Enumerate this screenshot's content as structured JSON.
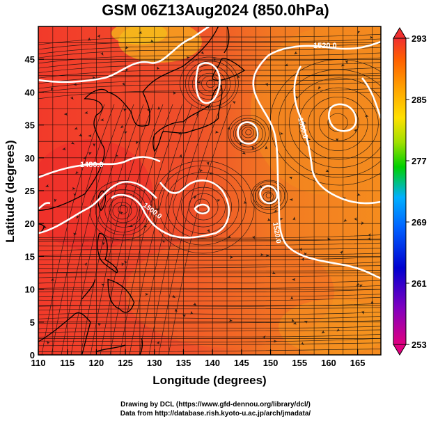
{
  "title": "GSM 06Z13Aug2024 (850.0hPa)",
  "xaxis": {
    "label": "Longitude (degrees)",
    "ticks": [
      "110",
      "115",
      "120",
      "125",
      "130",
      "135",
      "140",
      "145",
      "150",
      "155",
      "160",
      "165"
    ],
    "range": [
      110,
      169
    ]
  },
  "yaxis": {
    "label": "Latitude  (degrees)",
    "ticks": [
      "0",
      "5",
      "10",
      "15",
      "20",
      "25",
      "30",
      "35",
      "40",
      "45"
    ],
    "range": [
      0,
      50
    ]
  },
  "colorbar": {
    "ticks": [
      "293",
      "285",
      "277",
      "269",
      "261",
      "253"
    ],
    "range": [
      253,
      293
    ],
    "colors": [
      "#e0007f",
      "#8000c0",
      "#0000d0",
      "#0060ff",
      "#00b0ff",
      "#00d000",
      "#a0e000",
      "#ffe000",
      "#ffa000",
      "#ff6000",
      "#f03030"
    ]
  },
  "contour_labels": [
    "1520.0",
    "1480.0",
    "1500.0",
    "1500.0",
    "1520.0"
  ],
  "grid": true,
  "credits": {
    "line1": "Drawing by DCL (https://www.gfd-dennou.org/library/dcl/)",
    "line2": "Data from http://database.rish.kyoto-u.ac.jp/arch/jmadata/"
  }
}
